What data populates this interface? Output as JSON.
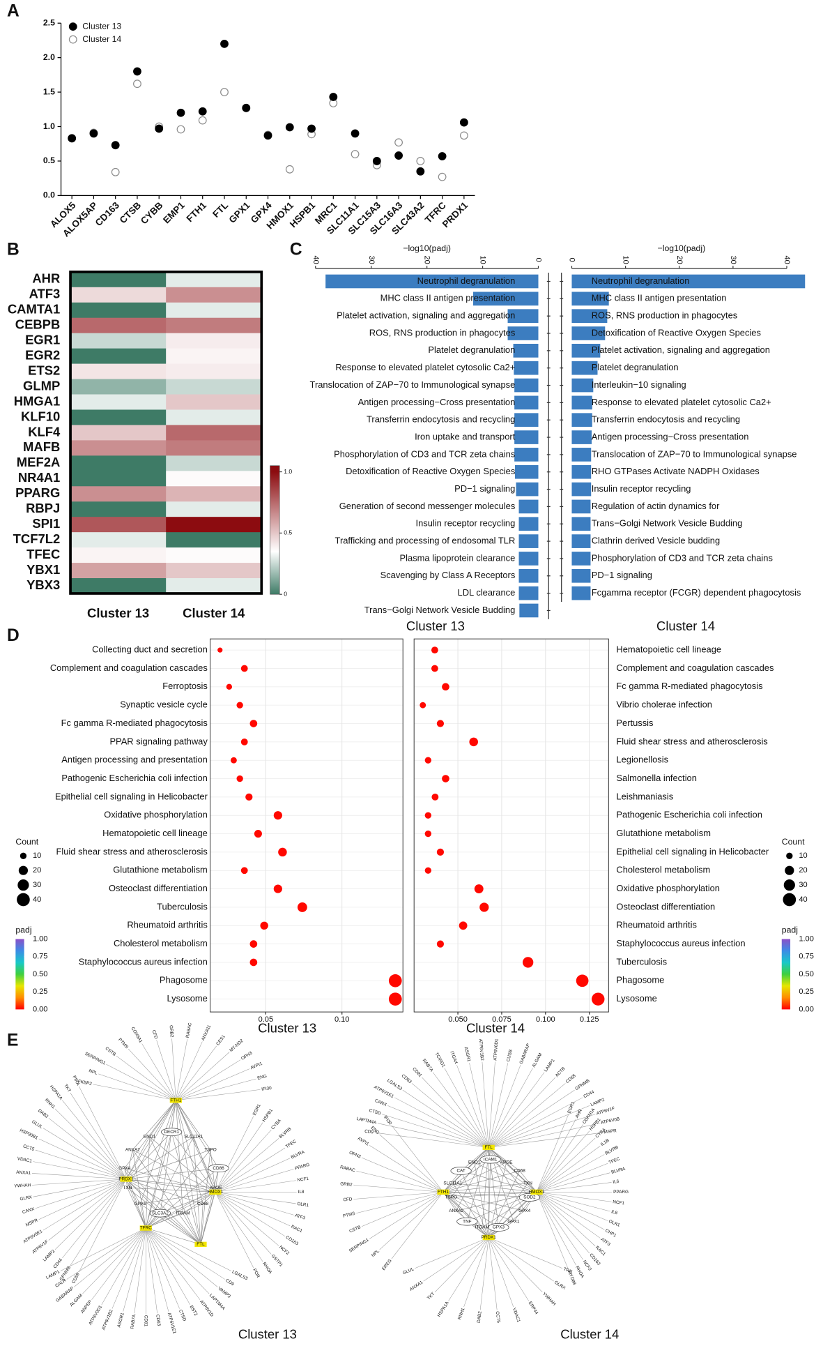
{
  "panel_labels": [
    "A",
    "B",
    "C",
    "D",
    "E"
  ],
  "chart_data": [
    {
      "type": "dot",
      "categories": [
        "ALOX5",
        "ALOX5AP",
        "CD163",
        "CTSB",
        "CYBB",
        "EMP1",
        "FTH1",
        "FTL",
        "GPX1",
        "GPX4",
        "HMOX1",
        "HSPB1",
        "MRC1",
        "SLC11A1",
        "SLC15A3",
        "SLC16A3",
        "SLC43A2",
        "TFRC",
        "PRDX1"
      ],
      "series": [
        {
          "name": "Cluster 13",
          "color": "#000000",
          "filled": true,
          "values": [
            0.83,
            0.9,
            0.73,
            1.8,
            0.97,
            1.2,
            1.22,
            2.2,
            1.27,
            0.87,
            0.99,
            0.97,
            1.43,
            0.9,
            0.5,
            0.58,
            0.35,
            0.57,
            1.06
          ]
        },
        {
          "name": "Cluster 14",
          "color": "#8c8c8c",
          "filled": false,
          "values": [
            0.83,
            0.91,
            0.34,
            1.62,
            1.0,
            0.96,
            1.09,
            1.5,
            1.27,
            0.88,
            0.38,
            0.89,
            1.34,
            0.6,
            0.44,
            0.77,
            0.5,
            0.27,
            0.87
          ]
        }
      ],
      "ylim": [
        0,
        2.5
      ],
      "yticks": [
        {
          "value": 0,
          "label": "0.0"
        },
        0.5,
        {
          "value": 1,
          "label": "1.0"
        },
        1.5,
        {
          "value": 2,
          "label": "2.0"
        },
        2.5
      ],
      "legend": "upper left"
    },
    {
      "type": "heatmap",
      "rows": [
        "AHR",
        "ATF3",
        "CAMTA1",
        "CEBPB",
        "EGR1",
        "EGR2",
        "ETS2",
        "GLMP",
        "HMGA1",
        "KLF10",
        "KLF4",
        "MAFB",
        "MEF2A",
        "NR4A1",
        "PPARG",
        "RBPJ",
        "SPI1",
        "TCF7L2",
        "TFEC",
        "YBX1",
        "YBX3"
      ],
      "columns": [
        "Cluster 13",
        "Cluster 14"
      ],
      "values": [
        [
          0,
          0.3
        ],
        [
          0.45,
          0.65
        ],
        [
          0,
          0.3
        ],
        [
          0.75,
          0.7
        ],
        [
          0.25,
          0.4
        ],
        [
          0,
          0.38
        ],
        [
          0.42,
          0.4
        ],
        [
          0.15,
          0.25
        ],
        [
          0.3,
          0.5
        ],
        [
          0,
          0.3
        ],
        [
          0.5,
          0.75
        ],
        [
          0.65,
          0.7
        ],
        [
          0,
          0.25
        ],
        [
          0,
          0.36
        ],
        [
          0.65,
          0.55
        ],
        [
          0,
          0.3
        ],
        [
          0.8,
          1.0
        ],
        [
          0.3,
          0
        ],
        [
          0.38,
          0.36
        ],
        [
          0.6,
          0.5
        ],
        [
          0,
          0.3
        ]
      ],
      "colorscale": [
        {
          "value": 0,
          "color": "#3e7b66"
        },
        {
          "value": 0.35,
          "color": "#ffffff"
        },
        {
          "value": 1,
          "color": "#8c0c10"
        }
      ],
      "clim": [
        0,
        1.05
      ],
      "cticks": [
        0,
        0.5,
        {
          "value": 1,
          "label": "1.0"
        }
      ]
    },
    {
      "type": "bar",
      "title": "Cluster 13",
      "xlabel": "−log10(padj)",
      "x_reversed": true,
      "color": "#3c7dc0",
      "categories": [
        "Neutrophil degranulation",
        "MHC class II antigen presentation",
        "Platelet activation, signaling and aggregation",
        "ROS, RNS production in phagocytes",
        "Platelet degranulation",
        "Response to elevated platelet cytosolic Ca2+",
        "Translocation of ZAP−70 to Immunological synapse",
        "Antigen processing−Cross presentation",
        "Transferrin endocytosis and recycling",
        "Iron uptake and transport",
        "Phosphorylation of CD3 and TCR zeta chains",
        "Detoxification of Reactive Oxygen Species",
        "PD−1 signaling",
        "Generation of second messenger molecules",
        "Insulin receptor recycling",
        "Trafficking and processing of endosomal TLR",
        "Plasma lipoprotein clearance",
        "Scavenging by Class A Receptors",
        "LDL clearance",
        "Trans−Golgi Network Vesicle Budding"
      ],
      "values": [
        38.2,
        11.7,
        5.5,
        5.5,
        4.5,
        4.4,
        4.3,
        4.3,
        4.3,
        4.3,
        4.3,
        4.2,
        4.0,
        3.5,
        3.5,
        3.5,
        3.5,
        3.5,
        3.5,
        3.4
      ],
      "xlim": [
        0,
        40
      ],
      "xticks": [
        40,
        30,
        20,
        10,
        0
      ]
    },
    {
      "type": "bar",
      "title": "Cluster 14",
      "xlabel": "−log10(padj)",
      "x_reversed": false,
      "color": "#3c7dc0",
      "categories": [
        "Neutrophil degranulation",
        "MHC class II antigen presentation",
        "ROS, RNS production in phagocytes",
        "Detoxification of Reactive Oxygen Species",
        "Platelet activation, signaling and aggregation",
        "Platelet degranulation",
        "Interleukin−10 signaling",
        "Response to elevated platelet cytosolic Ca2+",
        "Transferrin endocytosis and recycling",
        "Antigen processing−Cross presentation",
        "Translocation of ZAP−70 to Immunological synapse",
        "RHO GTPases Activate NADPH Oxidases",
        "Insulin receptor recycling",
        "Regulation of actin dynamics for",
        "Trans−Golgi Network Vesicle Budding",
        "Clathrin derived Vesicle budding",
        "Phosphorylation of CD3 and TCR zeta chains",
        "PD−1 signaling",
        "Fcgamma receptor (FCGR) dependent phagocytosis"
      ],
      "values": [
        43.4,
        6.9,
        6.6,
        6.2,
        5.3,
        4.8,
        4.0,
        3.8,
        3.8,
        3.7,
        3.6,
        3.6,
        3.6,
        3.5,
        3.5,
        3.5,
        3.5,
        3.5,
        3.5
      ],
      "xlim": [
        0,
        44
      ],
      "xticks": [
        0,
        10,
        20,
        30,
        40
      ]
    },
    {
      "type": "bubble",
      "title": "Cluster 13",
      "categories": [
        "Collecting duct and secretion",
        "Complement and coagulation cascades",
        "Ferroptosis",
        "Synaptic vesicle cycle",
        "Fc gamma R-mediated phagocytosis",
        "PPAR signaling pathway",
        "Antigen processing and presentation",
        "Pathogenic Escherichia coli infection",
        "Epithelial cell signaling in Helicobacter",
        "Oxidative phosphorylation",
        "Hematopoietic cell lineage",
        "Fluid shear stress and atherosclerosis",
        "Glutathione metabolism",
        "Osteoclast differentiation",
        "Tuberculosis",
        "Rheumatoid arthritis",
        "Cholesterol metabolism",
        "Staphylococcus aureus infection",
        "Phagosome",
        "Lysosome"
      ],
      "values": [
        0.02,
        0.036,
        0.026,
        0.033,
        0.042,
        0.036,
        0.029,
        0.033,
        0.039,
        0.058,
        0.045,
        0.061,
        0.036,
        0.058,
        0.074,
        0.049,
        0.042,
        0.042,
        0.135,
        0.135
      ],
      "sizes": [
        6,
        11,
        8,
        10,
        13,
        11,
        9,
        10,
        12,
        17,
        14,
        18,
        11,
        17,
        22,
        15,
        13,
        13,
        40,
        40
      ],
      "padj": [
        0.01,
        0.01,
        0.01,
        0.01,
        0.01,
        0.01,
        0.01,
        0.01,
        0.01,
        0.01,
        0.01,
        0.01,
        0.01,
        0.01,
        0.01,
        0.01,
        0.01,
        0.01,
        0.01,
        0.01
      ],
      "xlim": [
        0.0135,
        0.14
      ],
      "xticks": [
        0.05,
        {
          "value": 0.1,
          "label": "0.10"
        }
      ],
      "size_legend": {
        "title": "Count",
        "values": [
          10,
          20,
          30,
          40
        ]
      },
      "color_legend": {
        "title": "padj",
        "clim": [
          0,
          1
        ],
        "colors": [
          "#ff0000",
          "#ff8c00",
          "#e6e600",
          "#3fcf3f",
          "#19c8c8",
          "#3c8ce6",
          "#8c50c8"
        ],
        "ticks": [
          {
            "value": 1,
            "label": "1.00"
          },
          0.75,
          {
            "value": 0.5,
            "label": "0.50"
          },
          0.25,
          {
            "value": 0,
            "label": "0.00"
          }
        ]
      }
    },
    {
      "type": "bubble",
      "title": "Cluster 14",
      "categories": [
        "Hematopoietic cell lineage",
        "Complement and coagulation cascades",
        "Fc gamma R-mediated phagocytosis",
        "Vibrio cholerae infection",
        "Pertussis",
        "Fluid shear stress and atherosclerosis",
        "Legionellosis",
        "Salmonella infection",
        "Leishmaniasis",
        "Pathogenic Escherichia coli infection",
        "Glutathione metabolism",
        "Epithelial cell signaling in Helicobacter",
        "Cholesterol metabolism",
        "Oxidative phosphorylation",
        "Osteoclast differentiation",
        "Rheumatoid arthritis",
        "Staphylococcus aureus infection",
        "Tuberculosis",
        "Phagosome",
        "Lysosome"
      ],
      "values": [
        0.0368,
        0.0368,
        0.043,
        0.03,
        0.04,
        0.059,
        0.033,
        0.043,
        0.037,
        0.033,
        0.033,
        0.04,
        0.033,
        0.062,
        0.065,
        0.053,
        0.04,
        0.09,
        0.121,
        0.13
      ],
      "sizes": [
        11,
        11,
        13,
        9,
        12,
        18,
        10,
        13,
        11,
        10,
        10,
        12,
        10,
        19,
        20,
        16,
        12,
        27,
        36,
        39
      ],
      "padj": [
        0.01,
        0.01,
        0.01,
        0.01,
        0.01,
        0.01,
        0.01,
        0.01,
        0.01,
        0.01,
        0.01,
        0.01,
        0.01,
        0.01,
        0.01,
        0.01,
        0.01,
        0.01,
        0.01,
        0.01
      ],
      "xlim": [
        0.025,
        0.136
      ],
      "xticks": [
        {
          "value": 0.05,
          "label": "0.050"
        },
        0.075,
        {
          "value": 0.1,
          "label": "0.100"
        },
        0.125
      ],
      "size_legend": {
        "title": "Count",
        "values": [
          10,
          20,
          30,
          40
        ]
      },
      "color_legend": {
        "title": "padj",
        "clim": [
          0,
          1
        ],
        "colors": [
          "#ff0000",
          "#ff8c00",
          "#e6e600",
          "#3fcf3f",
          "#19c8c8",
          "#3c8ce6",
          "#8c50c8"
        ],
        "ticks": [
          {
            "value": 1,
            "label": "1.00"
          },
          0.75,
          {
            "value": 0.5,
            "label": "0.50"
          },
          0.25,
          {
            "value": 0,
            "label": "0.00"
          }
        ]
      }
    }
  ],
  "networks": [
    {
      "title": "Cluster 13",
      "hubs": [
        {
          "label": "FTH1",
          "leaves": [
            "FKBP2",
            "NPL",
            "SERPING1",
            "CSTB",
            "PTMS",
            "COX6A1",
            "CFD",
            "GRB2",
            "RABAC",
            "ANXA11",
            "CES1",
            "MT-ND2",
            "OPN3",
            "AVPI1",
            "ENG",
            "IFI30"
          ]
        },
        {
          "label": "PRDX1",
          "leaves": [
            "PIRA",
            "TKT",
            "HSPA1A",
            "RNH1",
            "DAB2",
            "GLUL",
            "HSP90B1",
            "CCT5",
            "VDAC1",
            "ANXA1",
            "YWHAH",
            "GLRX",
            "CANX",
            "MSPR",
            "ATP6V0E1",
            "ATP6V1F",
            "LAMP2",
            "CD44",
            "GPNMB",
            "CD59"
          ]
        },
        {
          "label": "HMOX1",
          "leaves": [
            "EGR1",
            "HSPB1",
            "CYBA",
            "BLVRB",
            "TFEC",
            "BLVRA",
            "PPARG",
            "NCF1",
            "IL8",
            "OLR1",
            "ATF3",
            "RAC1",
            "CD163",
            "NCF2",
            "GSTP1",
            "RHOA",
            "POR"
          ]
        },
        {
          "label": "TFRC",
          "leaves": [
            "LAMP1",
            "CALR",
            "GABARAP",
            "ALGAM",
            "ANPEP",
            "ATP6V0D1",
            "ATP6V1B2",
            "ASGR1",
            "RAB7A",
            "CD81",
            "CD63",
            "ATP6V1E1",
            "CTSD",
            "BST2",
            "ATP6V1D",
            "LAPTM4A",
            "VAMP3",
            "CD9",
            "LGALS3"
          ]
        },
        {
          "label": "FTL",
          "leaves": []
        }
      ],
      "inner": [
        {
          "label": "DECR1",
          "circled": true
        },
        {
          "label": "SLC11A1",
          "circled": false
        },
        {
          "label": "TSPO",
          "circled": false
        },
        {
          "label": "CD86",
          "circled": true
        },
        {
          "label": "APOE",
          "circled": false
        },
        {
          "label": "CD68",
          "circled": false
        },
        {
          "label": "ITGAM",
          "circled": false
        },
        {
          "label": "SLC3A2",
          "circled": true
        },
        {
          "label": "GPX1",
          "circled": false
        },
        {
          "label": "TXN",
          "circled": false
        },
        {
          "label": "GPX4",
          "circled": false
        },
        {
          "label": "ANXA2",
          "circled": false
        },
        {
          "label": "ENO1",
          "circled": false
        }
      ]
    },
    {
      "title": "Cluster 14",
      "hubs": [
        {
          "label": "FTL",
          "leaves": [
            "CD9",
            "LAPTM4A",
            "CTSD",
            "CANX",
            "ATP6V1E1",
            "LGALS3",
            "CD63",
            "CD81",
            "RAB7A",
            "TCIRG1",
            "ITGAX",
            "ASGR1",
            "ATP6V1B2",
            "ATP6V0D1",
            "CUSB",
            "GABARAP",
            "ALGAM",
            "LAMP1",
            "ACTB",
            "CD68",
            "GPNMB",
            "CD44",
            "LAMP2",
            "ATP6V1F",
            "ATP6V0B",
            "MSPR"
          ]
        },
        {
          "label": "FTH1",
          "leaves": [
            "IFI30",
            "ENG",
            "AVPI1",
            "OPN3",
            "RABAC",
            "GRB2",
            "CFD",
            "PTMS",
            "CSTB",
            "SERPING1",
            "NPL",
            "EREG"
          ]
        },
        {
          "label": "HMOX1",
          "leaves": [
            "EGR1",
            "AHR",
            "CDKN1A",
            "HSPB1",
            "CYBA",
            "IL1B",
            "BLVRB",
            "TFEC",
            "BLVRA",
            "IL6",
            "PPARG",
            "NCF1",
            "IL8",
            "OLR1",
            "CHP1",
            "ATF3",
            "RAC1",
            "CD163",
            "NCF2",
            "RHOA",
            "MYD88"
          ]
        },
        {
          "label": "PRDX1",
          "leaves": [
            "GLUL",
            "ANXA1",
            "TKT",
            "HSPA1A",
            "RNH1",
            "DAB2",
            "CCT5",
            "VDAC1",
            "ERP44",
            "YWHAH",
            "GLRX",
            "TRI1"
          ]
        }
      ],
      "inner": [
        {
          "label": "ICAM1",
          "circled": true
        },
        {
          "label": "APOE",
          "circled": false
        },
        {
          "label": "CD68",
          "circled": false
        },
        {
          "label": "TXN",
          "circled": false
        },
        {
          "label": "SOD2",
          "circled": true
        },
        {
          "label": "GPX4",
          "circled": false
        },
        {
          "label": "GPX1",
          "circled": false
        },
        {
          "label": "GPX3",
          "circled": true
        },
        {
          "label": "ITGAM",
          "circled": false
        },
        {
          "label": "TNF",
          "circled": true
        },
        {
          "label": "ANXA2",
          "circled": false
        },
        {
          "label": "TSPO",
          "circled": false
        },
        {
          "label": "SLC11A1",
          "circled": false
        },
        {
          "label": "CAT",
          "circled": true
        },
        {
          "label": "ENO1",
          "circled": false
        }
      ]
    }
  ]
}
